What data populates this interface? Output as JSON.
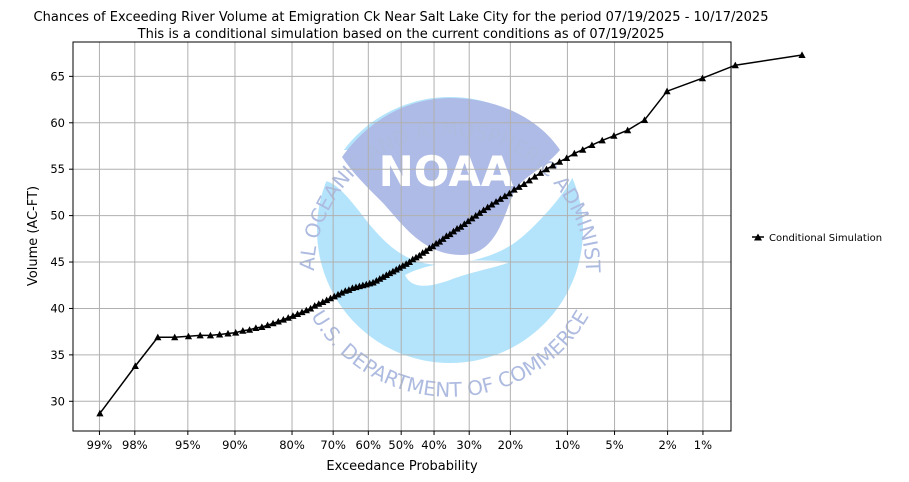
{
  "chart_data": {
    "type": "line",
    "title": "Chances of Exceeding River Volume at Emigration Ck Near Salt Lake City for the period 07/19/2025 - 10/17/2025",
    "subtitle": "This is a conditional simulation based on the current conditions as of 07/19/2025",
    "xlabel": "Exceedance Probability",
    "ylabel": "Volume (AC-FT)",
    "x_scale": "normal-probability",
    "ylim": [
      26.8,
      68.7
    ],
    "x_ticks": [
      {
        "p": 99,
        "label": "99%"
      },
      {
        "p": 98,
        "label": "98%"
      },
      {
        "p": 95,
        "label": "95%"
      },
      {
        "p": 90,
        "label": "90%"
      },
      {
        "p": 80,
        "label": "80%"
      },
      {
        "p": 70,
        "label": "70%"
      },
      {
        "p": 60,
        "label": "60%"
      },
      {
        "p": 50,
        "label": "50%"
      },
      {
        "p": 40,
        "label": "40%"
      },
      {
        "p": 30,
        "label": "30%"
      },
      {
        "p": 20,
        "label": "20%"
      },
      {
        "p": 10,
        "label": "10%"
      },
      {
        "p": 5,
        "label": "5%"
      },
      {
        "p": 2,
        "label": "2%"
      },
      {
        "p": 1,
        "label": "1%"
      }
    ],
    "y_ticks": [
      30,
      35,
      40,
      45,
      50,
      55,
      60,
      65
    ],
    "grid": true,
    "legend_position": "right",
    "series": [
      {
        "name": "Conditional Simulation",
        "color": "#000000",
        "marker": "triangle",
        "points": [
          [
            98.99,
            28.7
          ],
          [
            97.98,
            33.8
          ],
          [
            96.97,
            36.9
          ],
          [
            95.96,
            36.9
          ],
          [
            94.95,
            37.0
          ],
          [
            93.94,
            37.1
          ],
          [
            92.93,
            37.1
          ],
          [
            91.92,
            37.2
          ],
          [
            90.91,
            37.3
          ],
          [
            89.9,
            37.4
          ],
          [
            88.89,
            37.6
          ],
          [
            87.88,
            37.7
          ],
          [
            86.87,
            37.9
          ],
          [
            85.86,
            38.0
          ],
          [
            84.85,
            38.2
          ],
          [
            83.84,
            38.4
          ],
          [
            82.83,
            38.6
          ],
          [
            81.82,
            38.8
          ],
          [
            80.81,
            39.0
          ],
          [
            79.8,
            39.2
          ],
          [
            78.79,
            39.4
          ],
          [
            77.78,
            39.6
          ],
          [
            76.77,
            39.8
          ],
          [
            75.76,
            40.0
          ],
          [
            74.75,
            40.3
          ],
          [
            73.74,
            40.5
          ],
          [
            72.73,
            40.7
          ],
          [
            71.72,
            40.9
          ],
          [
            70.71,
            41.1
          ],
          [
            69.7,
            41.3
          ],
          [
            68.69,
            41.5
          ],
          [
            67.68,
            41.7
          ],
          [
            66.67,
            41.9
          ],
          [
            65.66,
            42.0
          ],
          [
            64.65,
            42.2
          ],
          [
            63.64,
            42.3
          ],
          [
            62.63,
            42.4
          ],
          [
            61.62,
            42.5
          ],
          [
            60.61,
            42.6
          ],
          [
            59.6,
            42.7
          ],
          [
            58.59,
            42.8
          ],
          [
            57.58,
            43.0
          ],
          [
            56.57,
            43.2
          ],
          [
            55.56,
            43.4
          ],
          [
            54.55,
            43.6
          ],
          [
            53.54,
            43.8
          ],
          [
            52.53,
            44.0
          ],
          [
            51.52,
            44.2
          ],
          [
            50.51,
            44.4
          ],
          [
            49.49,
            44.6
          ],
          [
            48.48,
            44.8
          ],
          [
            47.47,
            45.0
          ],
          [
            46.46,
            45.3
          ],
          [
            45.45,
            45.5
          ],
          [
            44.44,
            45.7
          ],
          [
            43.43,
            46.0
          ],
          [
            42.42,
            46.2
          ],
          [
            41.41,
            46.5
          ],
          [
            40.4,
            46.7
          ],
          [
            39.39,
            47.0
          ],
          [
            38.38,
            47.2
          ],
          [
            37.37,
            47.5
          ],
          [
            36.36,
            47.8
          ],
          [
            35.35,
            48.0
          ],
          [
            34.34,
            48.3
          ],
          [
            33.33,
            48.6
          ],
          [
            32.32,
            48.8
          ],
          [
            31.31,
            49.1
          ],
          [
            30.3,
            49.4
          ],
          [
            29.29,
            49.7
          ],
          [
            28.28,
            50.0
          ],
          [
            27.27,
            50.3
          ],
          [
            26.26,
            50.6
          ],
          [
            25.25,
            50.9
          ],
          [
            24.24,
            51.2
          ],
          [
            23.23,
            51.5
          ],
          [
            22.22,
            51.8
          ],
          [
            21.21,
            52.1
          ],
          [
            20.2,
            52.4
          ],
          [
            19.19,
            52.8
          ],
          [
            18.18,
            53.1
          ],
          [
            17.17,
            53.4
          ],
          [
            16.16,
            53.8
          ],
          [
            15.15,
            54.2
          ],
          [
            14.14,
            54.6
          ],
          [
            13.13,
            55.0
          ],
          [
            12.12,
            55.4
          ],
          [
            11.11,
            55.8
          ],
          [
            10.1,
            56.2
          ],
          [
            9.09,
            56.7
          ],
          [
            8.08,
            57.1
          ],
          [
            7.07,
            57.6
          ],
          [
            6.06,
            58.1
          ],
          [
            5.05,
            58.6
          ],
          [
            4.04,
            59.2
          ],
          [
            3.03,
            60.3
          ],
          [
            2.02,
            63.4
          ],
          [
            1.01,
            64.8
          ],
          [
            0.5,
            66.2
          ],
          [
            0.1,
            67.3
          ]
        ]
      }
    ]
  },
  "logo": {
    "agency_text_top": "NATIONAL OCEANIC AND ATMOSPHERIC ADMINISTRATION",
    "agency_text_bottom": "U.S. DEPARTMENT OF COMMERCE",
    "wordmark": "NOAA",
    "colors": {
      "dark": "#aebbe6",
      "light": "#b4e4fb",
      "text": "#aebbe0"
    }
  }
}
